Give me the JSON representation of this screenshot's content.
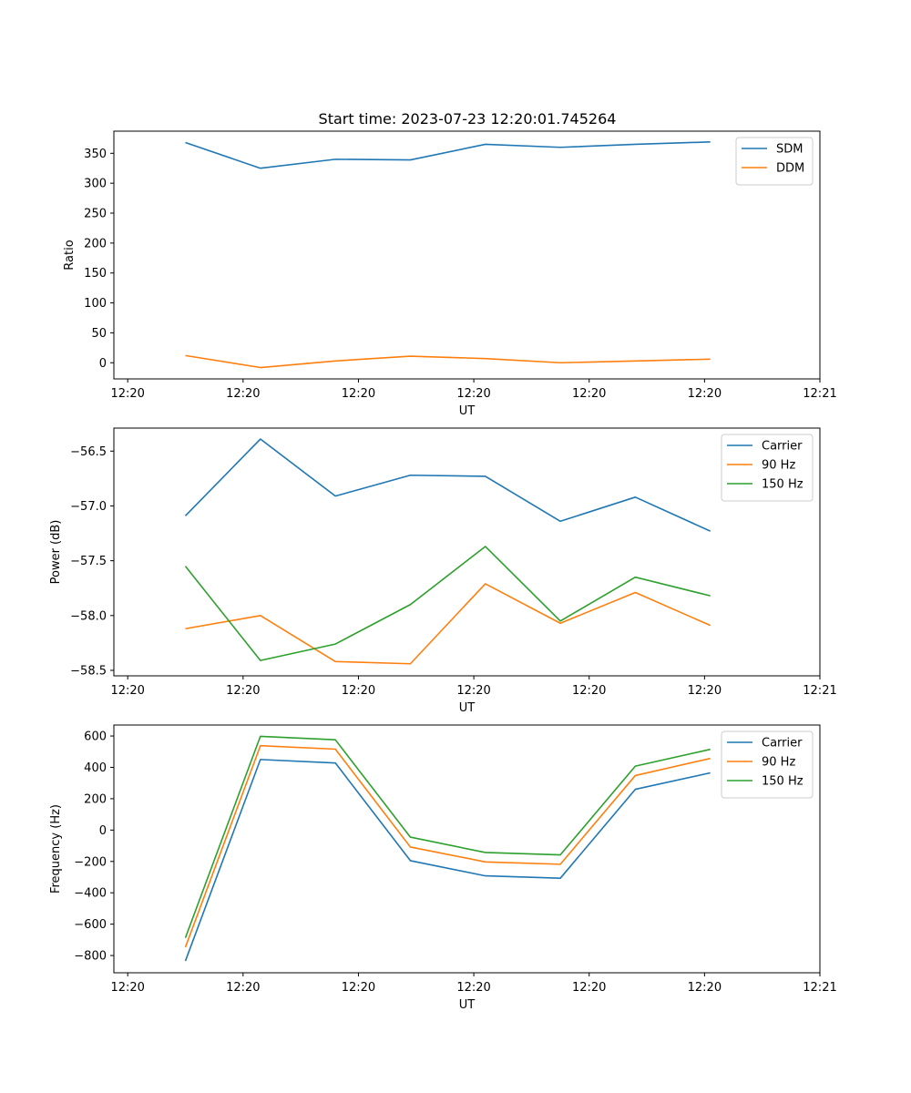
{
  "figure": {
    "title": "Start time: 2023-07-23 12:20:01.745264"
  },
  "chart_data": [
    {
      "type": "line",
      "xlabel": "UT",
      "ylabel": "Ratio",
      "x_index": [
        0.5,
        1.15,
        1.8,
        2.45,
        3.1,
        3.75,
        4.4,
        5.05
      ],
      "x_ticks": [
        0,
        1,
        2,
        3,
        4,
        5,
        6
      ],
      "x_tick_labels": [
        "12:20",
        "12:20",
        "12:20",
        "12:20",
        "12:20",
        "12:20",
        "12:21"
      ],
      "xlim": [
        -0.12,
        6.0
      ],
      "ylim": [
        -27,
        387
      ],
      "y_ticks": [
        0,
        50,
        100,
        150,
        200,
        250,
        300,
        350
      ],
      "y_tick_labels": [
        "0",
        "50",
        "100",
        "150",
        "200",
        "250",
        "300",
        "350"
      ],
      "legend_loc": "upper right",
      "series": [
        {
          "name": "SDM",
          "color": "#1f77b4",
          "values": [
            368,
            325,
            340,
            339,
            365,
            360,
            365,
            369
          ]
        },
        {
          "name": "DDM",
          "color": "#ff7f0e",
          "values": [
            12,
            -8,
            3,
            11,
            7,
            0,
            3,
            6
          ]
        }
      ]
    },
    {
      "type": "line",
      "xlabel": "UT",
      "ylabel": "Power (dB)",
      "x_index": [
        0.5,
        1.15,
        1.8,
        2.45,
        3.1,
        3.75,
        4.4,
        5.05
      ],
      "x_ticks": [
        0,
        1,
        2,
        3,
        4,
        5,
        6
      ],
      "x_tick_labels": [
        "12:20",
        "12:20",
        "12:20",
        "12:20",
        "12:20",
        "12:20",
        "12:21"
      ],
      "xlim": [
        -0.12,
        6.0
      ],
      "ylim": [
        -58.55,
        -56.29
      ],
      "y_ticks": [
        -56.5,
        -57.0,
        -57.5,
        -58.0,
        -58.5
      ],
      "y_tick_labels": [
        "−56.5",
        "−57.0",
        "−57.5",
        "−58.0",
        "−58.5"
      ],
      "legend_loc": "upper right",
      "series": [
        {
          "name": "Carrier",
          "color": "#1f77b4",
          "values": [
            -57.09,
            -56.39,
            -56.91,
            -56.72,
            -56.73,
            -57.14,
            -56.92,
            -57.23
          ]
        },
        {
          "name": "90 Hz",
          "color": "#ff7f0e",
          "values": [
            -58.12,
            -58.0,
            -58.42,
            -58.44,
            -57.71,
            -58.07,
            -57.79,
            -58.09
          ]
        },
        {
          "name": "150 Hz",
          "color": "#2ca02c",
          "values": [
            -57.55,
            -58.41,
            -58.26,
            -57.9,
            -57.37,
            -58.05,
            -57.65,
            -57.82
          ]
        }
      ]
    },
    {
      "type": "line",
      "xlabel": "UT",
      "ylabel": "Frequency (Hz)",
      "x_index": [
        0.5,
        1.15,
        1.8,
        2.45,
        3.1,
        3.75,
        4.4,
        5.05
      ],
      "x_ticks": [
        0,
        1,
        2,
        3,
        4,
        5,
        6
      ],
      "x_tick_labels": [
        "12:20",
        "12:20",
        "12:20",
        "12:20",
        "12:20",
        "12:20",
        "12:21"
      ],
      "xlim": [
        -0.12,
        6.0
      ],
      "ylim": [
        -910,
        670
      ],
      "y_ticks": [
        600,
        400,
        200,
        0,
        -200,
        -400,
        -600,
        -800
      ],
      "y_tick_labels": [
        "600",
        "400",
        "200",
        "0",
        "−200",
        "−400",
        "−600",
        "−800"
      ],
      "legend_loc": "upper right",
      "series": [
        {
          "name": "Carrier",
          "color": "#1f77b4",
          "values": [
            -835,
            450,
            428,
            -195,
            -292,
            -307,
            260,
            365
          ]
        },
        {
          "name": "90 Hz",
          "color": "#ff7f0e",
          "values": [
            -747,
            538,
            516,
            -108,
            -203,
            -218,
            348,
            457
          ]
        },
        {
          "name": "150 Hz",
          "color": "#2ca02c",
          "values": [
            -687,
            598,
            576,
            -45,
            -143,
            -158,
            408,
            515
          ]
        }
      ]
    }
  ]
}
